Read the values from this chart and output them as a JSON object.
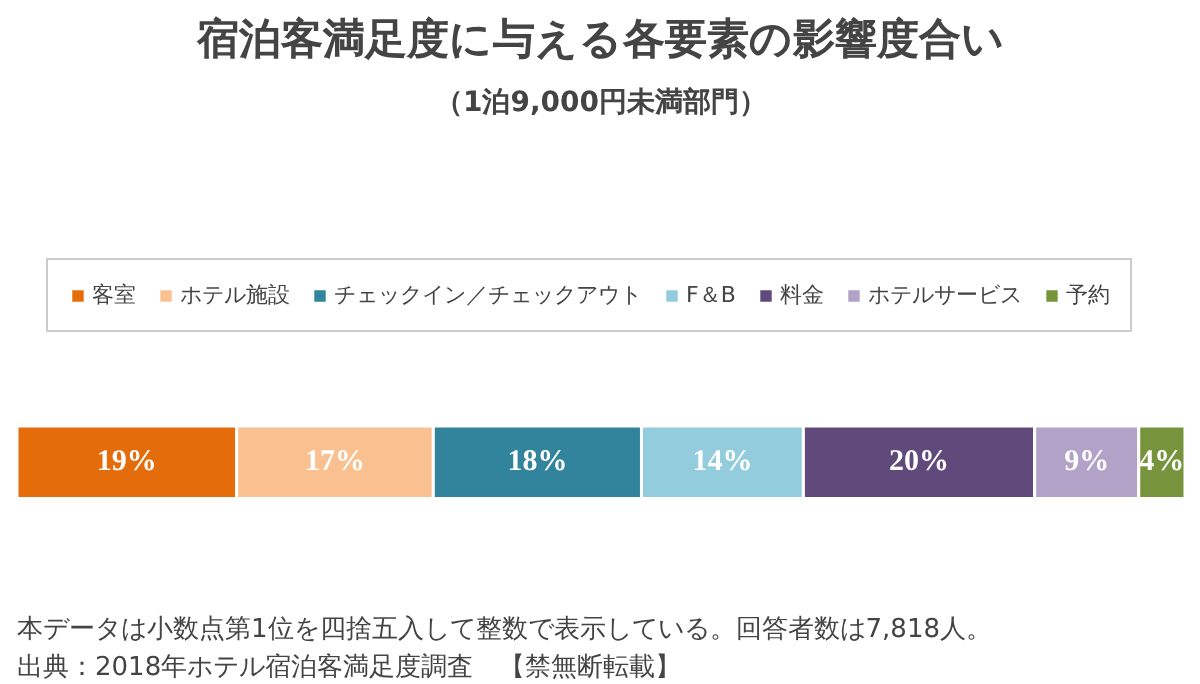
{
  "chart_data": {
    "type": "bar",
    "orientation": "horizontal",
    "stacked": true,
    "title": "宿泊客満足度に与える各要素の影響度合い",
    "subtitle": "（1泊9,000円未満部門）",
    "categories": [
      null
    ],
    "legend": "top",
    "series": [
      {
        "name": "客室",
        "color": "#e46c0a",
        "values": [
          19
        ],
        "value_labels": [
          "19%"
        ]
      },
      {
        "name": "ホテル施設",
        "color": "#fac090",
        "values": [
          17
        ],
        "value_labels": [
          "17%"
        ]
      },
      {
        "name": "チェックイン／チェックアウト",
        "color": "#31849b",
        "values": [
          18
        ],
        "value_labels": [
          "18%"
        ]
      },
      {
        "name": "F＆B",
        "color": "#93cddd",
        "values": [
          14
        ],
        "value_labels": [
          "14%"
        ]
      },
      {
        "name": "料金",
        "color": "#604a7b",
        "values": [
          20
        ],
        "value_labels": [
          "20%"
        ]
      },
      {
        "name": "ホテルサービス",
        "color": "#b3a2c7",
        "values": [
          9
        ],
        "value_labels": [
          "9%"
        ]
      },
      {
        "name": "予約",
        "color": "#77933c",
        "values": [
          4
        ],
        "value_labels": [
          "4%"
        ]
      }
    ],
    "annotations": [
      "本データは小数点第1位を四捨五入して整数で表示している。回答者数は7,818人。",
      "出典：2018年ホテル宿泊客満足度調査　【禁無断転載】"
    ]
  }
}
